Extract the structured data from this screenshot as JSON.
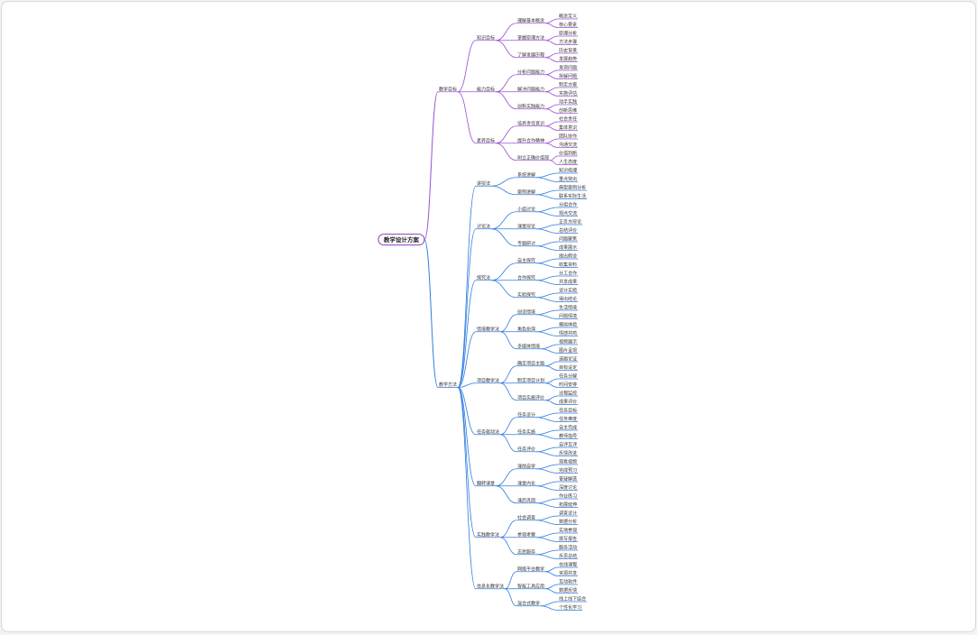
{
  "root": {
    "label": "教学设计方案",
    "children": [
      {
        "label": "教学目标",
        "children": [
          {
            "label": "知识目标",
            "children": [
              {
                "label": "理解基本概念",
                "children": [
                  {
                    "label": "概念定义"
                  },
                  {
                    "label": "核心要素"
                  }
                ]
              },
              {
                "label": "掌握原理方法",
                "children": [
                  {
                    "label": "原理分析"
                  },
                  {
                    "label": "方法步骤"
                  }
                ]
              },
              {
                "label": "了解发展历程",
                "children": [
                  {
                    "label": "历史背景"
                  },
                  {
                    "label": "发展趋势"
                  }
                ]
              }
            ]
          },
          {
            "label": "能力目标",
            "children": [
              {
                "label": "分析问题能力",
                "children": [
                  {
                    "label": "发现问题"
                  },
                  {
                    "label": "拆解问题"
                  }
                ]
              },
              {
                "label": "解决问题能力",
                "children": [
                  {
                    "label": "制定方案"
                  },
                  {
                    "label": "实施评估"
                  }
                ]
              },
              {
                "label": "创新实践能力",
                "children": [
                  {
                    "label": "动手实践"
                  },
                  {
                    "label": "创新思维"
                  }
                ]
              }
            ]
          },
          {
            "label": "素养目标",
            "children": [
              {
                "label": "培养责任意识",
                "children": [
                  {
                    "label": "社会责任"
                  },
                  {
                    "label": "集体意识"
                  }
                ]
              },
              {
                "label": "提升合作精神",
                "children": [
                  {
                    "label": "团队协作"
                  },
                  {
                    "label": "沟通交流"
                  }
                ]
              },
              {
                "label": "树立正确价值观",
                "children": [
                  {
                    "label": "价值判断"
                  },
                  {
                    "label": "人生态度"
                  }
                ]
              }
            ]
          }
        ]
      },
      {
        "label": "教学方法",
        "children": [
          {
            "label": "讲授法",
            "children": [
              {
                "label": "系统讲解",
                "children": [
                  {
                    "label": "知识梳理"
                  },
                  {
                    "label": "重点突出"
                  }
                ]
              },
              {
                "label": "案例讲解",
                "children": [
                  {
                    "label": "典型案例分析"
                  },
                  {
                    "label": "联系实际生活"
                  }
                ]
              }
            ]
          },
          {
            "label": "讨论法",
            "children": [
              {
                "label": "小组讨论",
                "children": [
                  {
                    "label": "分组合作"
                  },
                  {
                    "label": "观点交流"
                  }
                ]
              },
              {
                "label": "课堂辩论",
                "children": [
                  {
                    "label": "正反方辩论"
                  },
                  {
                    "label": "总结评价"
                  }
                ]
              },
              {
                "label": "专题研讨",
                "children": [
                  {
                    "label": "问题聚焦"
                  },
                  {
                    "label": "成果展示"
                  }
                ]
              }
            ]
          },
          {
            "label": "探究法",
            "children": [
              {
                "label": "自主探究",
                "children": [
                  {
                    "label": "提出假设"
                  },
                  {
                    "label": "收集资料"
                  }
                ]
              },
              {
                "label": "合作探究",
                "children": [
                  {
                    "label": "分工合作"
                  },
                  {
                    "label": "共享成果"
                  }
                ]
              },
              {
                "label": "实验探究",
                "children": [
                  {
                    "label": "设计实验"
                  },
                  {
                    "label": "得出结论"
                  }
                ]
              }
            ]
          },
          {
            "label": "情境教学法",
            "children": [
              {
                "label": "创设情境",
                "children": [
                  {
                    "label": "生活情境"
                  },
                  {
                    "label": "问题情境"
                  }
                ]
              },
              {
                "label": "角色扮演",
                "children": [
                  {
                    "label": "模拟体验"
                  },
                  {
                    "label": "情感共鸣"
                  }
                ]
              },
              {
                "label": "多媒体情境",
                "children": [
                  {
                    "label": "视频展示"
                  },
                  {
                    "label": "图片呈现"
                  }
                ]
              }
            ]
          },
          {
            "label": "项目教学法",
            "children": [
              {
                "label": "确定项目主题",
                "children": [
                  {
                    "label": "选题论证"
                  },
                  {
                    "label": "目标设定"
                  }
                ]
              },
              {
                "label": "制定项目计划",
                "children": [
                  {
                    "label": "任务分解"
                  },
                  {
                    "label": "时间安排"
                  }
                ]
              },
              {
                "label": "项目实施评价",
                "children": [
                  {
                    "label": "过程监控"
                  },
                  {
                    "label": "成果评价"
                  }
                ]
              }
            ]
          },
          {
            "label": "任务驱动法",
            "children": [
              {
                "label": "任务设计",
                "children": [
                  {
                    "label": "任务目标"
                  },
                  {
                    "label": "任务难度"
                  }
                ]
              },
              {
                "label": "任务实施",
                "children": [
                  {
                    "label": "自主完成"
                  },
                  {
                    "label": "教师指导"
                  }
                ]
              },
              {
                "label": "任务评价",
                "children": [
                  {
                    "label": "自评互评"
                  },
                  {
                    "label": "反馈改进"
                  }
                ]
              }
            ]
          },
          {
            "label": "翻转课堂",
            "children": [
              {
                "label": "课前自学",
                "children": [
                  {
                    "label": "观看视频"
                  },
                  {
                    "label": "完成预习"
                  }
                ]
              },
              {
                "label": "课堂内化",
                "children": [
                  {
                    "label": "答疑解惑"
                  },
                  {
                    "label": "深度讨论"
                  }
                ]
              },
              {
                "label": "课后巩固",
                "children": [
                  {
                    "label": "作业练习"
                  },
                  {
                    "label": "拓展延伸"
                  }
                ]
              }
            ]
          },
          {
            "label": "实践教学法",
            "children": [
              {
                "label": "社会调查",
                "children": [
                  {
                    "label": "调查设计"
                  },
                  {
                    "label": "数据分析"
                  }
                ]
              },
              {
                "label": "参观考察",
                "children": [
                  {
                    "label": "实地参观"
                  },
                  {
                    "label": "撰写报告"
                  }
                ]
              },
              {
                "label": "志愿服务",
                "children": [
                  {
                    "label": "服务活动"
                  },
                  {
                    "label": "反思总结"
                  }
                ]
              }
            ]
          },
          {
            "label": "信息化教学法",
            "children": [
              {
                "label": "网络平台教学",
                "children": [
                  {
                    "label": "在线课程"
                  },
                  {
                    "label": "资源共享"
                  }
                ]
              },
              {
                "label": "智能工具应用",
                "children": [
                  {
                    "label": "互动软件"
                  },
                  {
                    "label": "数据反馈"
                  }
                ]
              },
              {
                "label": "混合式教学",
                "children": [
                  {
                    "label": "线上线下结合"
                  },
                  {
                    "label": "个性化学习"
                  }
                ]
              }
            ]
          }
        ]
      }
    ]
  }
}
